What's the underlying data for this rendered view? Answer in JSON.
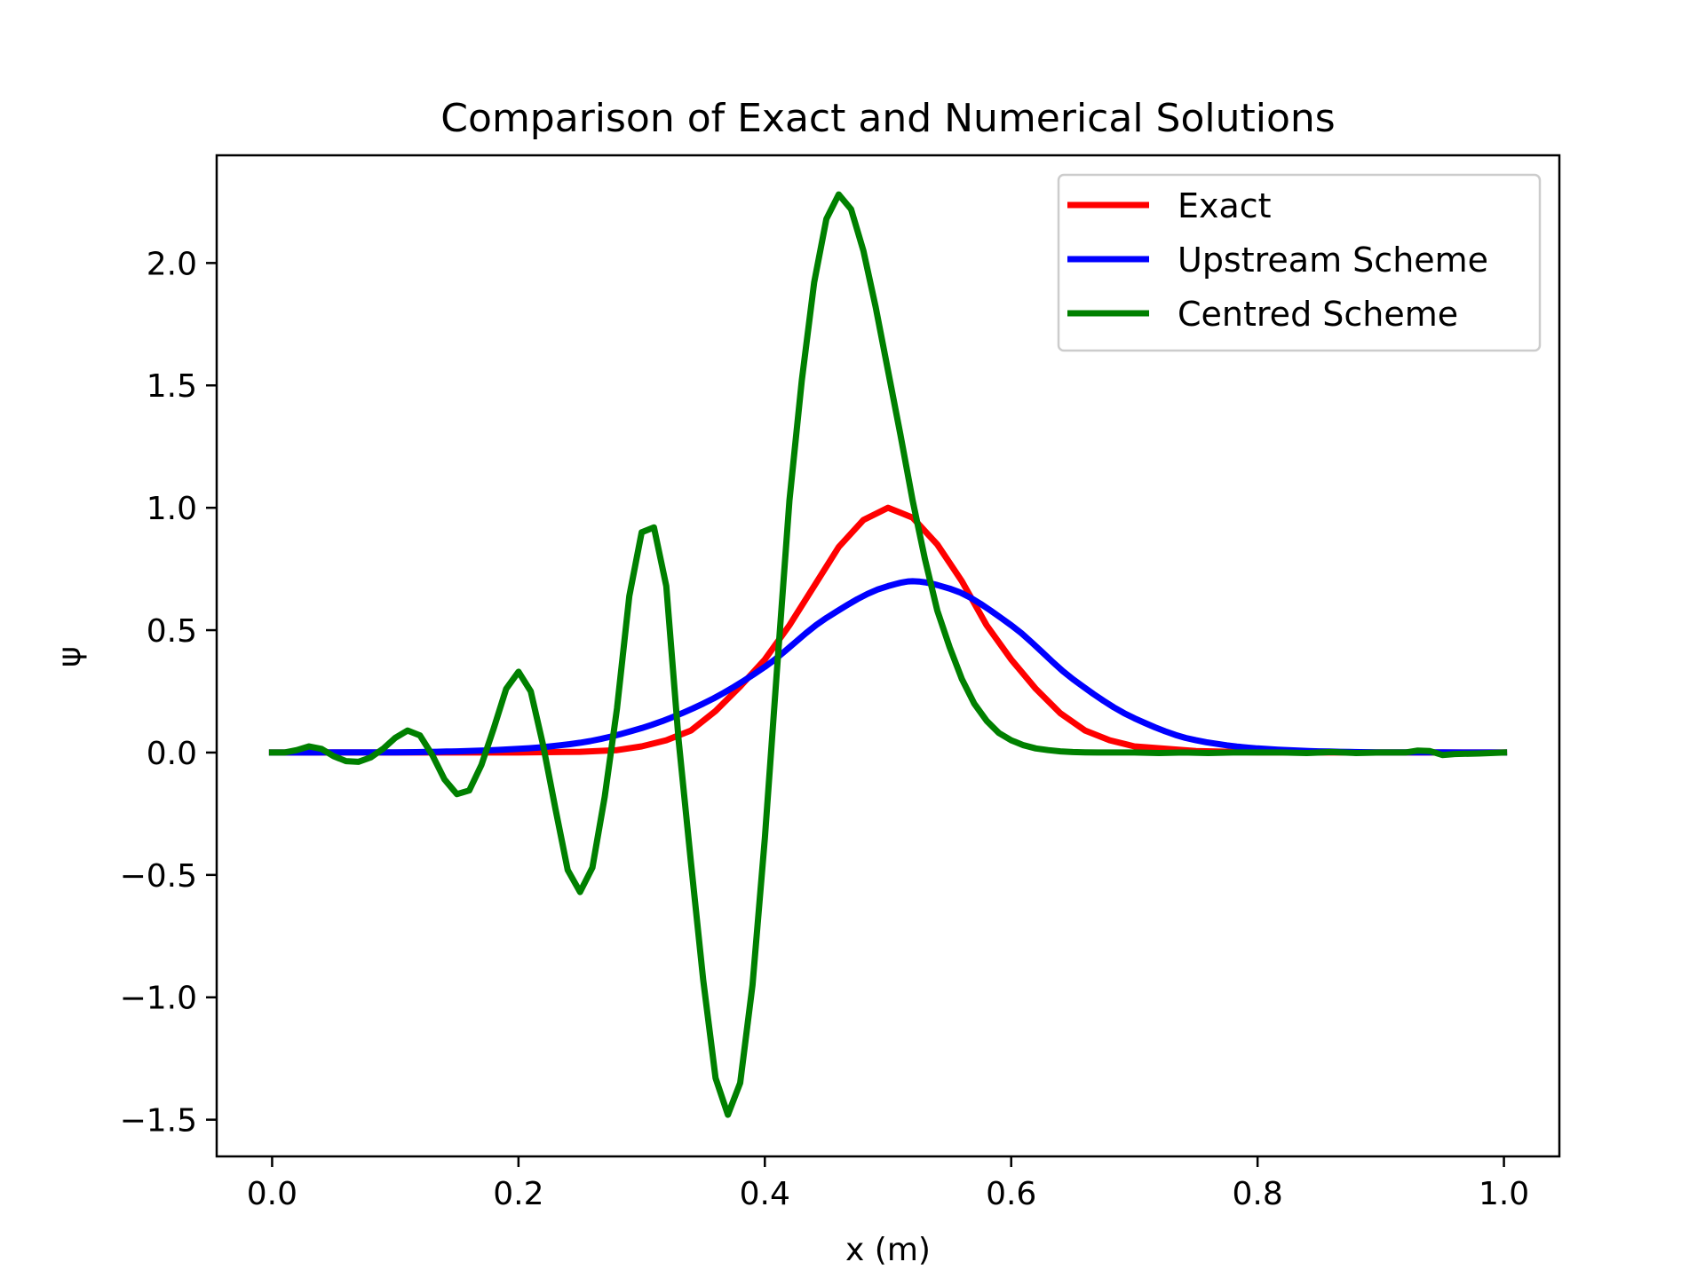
{
  "chart_data": {
    "type": "line",
    "title": "Comparison of Exact and Numerical Solutions",
    "xlabel": "x (m)",
    "ylabel": "ψ",
    "xlim": [
      -0.045,
      1.045
    ],
    "ylim": [
      -1.65,
      2.44
    ],
    "xticks": [
      0.0,
      0.2,
      0.4,
      0.6,
      0.8,
      1.0
    ],
    "xtick_labels": [
      "0.0",
      "0.2",
      "0.4",
      "0.6",
      "0.8",
      "1.0"
    ],
    "yticks": [
      -1.5,
      -1.0,
      -0.5,
      0.0,
      0.5,
      1.0,
      1.5,
      2.0
    ],
    "ytick_labels": [
      "−1.5",
      "−1.0",
      "−0.5",
      "0.0",
      "0.5",
      "1.0",
      "1.5",
      "2.0"
    ],
    "grid": false,
    "legend_position": "top-right",
    "series": [
      {
        "name": "Exact",
        "color": "#ff0000",
        "x": [
          0.0,
          0.1,
          0.2,
          0.25,
          0.28,
          0.3,
          0.32,
          0.34,
          0.36,
          0.38,
          0.4,
          0.42,
          0.44,
          0.46,
          0.48,
          0.5,
          0.52,
          0.54,
          0.56,
          0.58,
          0.6,
          0.62,
          0.64,
          0.66,
          0.68,
          0.7,
          0.75,
          0.8,
          0.9,
          1.0
        ],
        "y": [
          0.0,
          0.0,
          0.0,
          0.003,
          0.01,
          0.025,
          0.05,
          0.09,
          0.17,
          0.27,
          0.38,
          0.52,
          0.68,
          0.84,
          0.95,
          1.0,
          0.96,
          0.85,
          0.7,
          0.52,
          0.38,
          0.26,
          0.16,
          0.09,
          0.05,
          0.025,
          0.006,
          0.001,
          0.0,
          0.0
        ]
      },
      {
        "name": "Upstream Scheme",
        "color": "#0000ff",
        "x": [
          0.0,
          0.1,
          0.15,
          0.2,
          0.25,
          0.3,
          0.35,
          0.4,
          0.45,
          0.5,
          0.52,
          0.55,
          0.6,
          0.65,
          0.7,
          0.75,
          0.8,
          0.85,
          0.9,
          1.0
        ],
        "y": [
          0.0,
          0.001,
          0.005,
          0.015,
          0.04,
          0.1,
          0.2,
          0.35,
          0.55,
          0.68,
          0.7,
          0.67,
          0.52,
          0.3,
          0.14,
          0.05,
          0.017,
          0.005,
          0.001,
          0.0
        ],
        "smooth": true
      },
      {
        "name": "Centred Scheme",
        "color": "#008000",
        "x": [
          0.0,
          0.01,
          0.02,
          0.03,
          0.04,
          0.05,
          0.06,
          0.07,
          0.08,
          0.09,
          0.1,
          0.11,
          0.12,
          0.13,
          0.14,
          0.15,
          0.16,
          0.17,
          0.18,
          0.19,
          0.2,
          0.21,
          0.22,
          0.23,
          0.24,
          0.25,
          0.26,
          0.27,
          0.28,
          0.29,
          0.3,
          0.31,
          0.32,
          0.33,
          0.34,
          0.35,
          0.36,
          0.37,
          0.38,
          0.39,
          0.4,
          0.41,
          0.42,
          0.43,
          0.44,
          0.45,
          0.46,
          0.47,
          0.48,
          0.49,
          0.5,
          0.51,
          0.52,
          0.53,
          0.54,
          0.55,
          0.56,
          0.57,
          0.58,
          0.59,
          0.6,
          0.61,
          0.62,
          0.63,
          0.64,
          0.65,
          0.66,
          0.67,
          0.68,
          0.69,
          0.7,
          0.72,
          0.74,
          0.76,
          0.78,
          0.8,
          0.82,
          0.84,
          0.86,
          0.88,
          0.9,
          0.92,
          0.93,
          0.94,
          0.95,
          0.96,
          0.98,
          1.0
        ],
        "y": [
          0.0,
          0.0,
          0.01,
          0.025,
          0.015,
          -0.015,
          -0.035,
          -0.038,
          -0.02,
          0.015,
          0.06,
          0.09,
          0.07,
          -0.01,
          -0.11,
          -0.17,
          -0.155,
          -0.05,
          0.1,
          0.26,
          0.33,
          0.25,
          0.03,
          -0.23,
          -0.48,
          -0.57,
          -0.47,
          -0.18,
          0.18,
          0.64,
          0.9,
          0.92,
          0.68,
          0.05,
          -0.45,
          -0.93,
          -1.33,
          -1.48,
          -1.35,
          -0.95,
          -0.35,
          0.35,
          1.03,
          1.52,
          1.92,
          2.18,
          2.28,
          2.22,
          2.05,
          1.82,
          1.56,
          1.3,
          1.03,
          0.79,
          0.58,
          0.43,
          0.3,
          0.2,
          0.13,
          0.08,
          0.05,
          0.03,
          0.017,
          0.01,
          0.005,
          0.002,
          0.001,
          0.0,
          0.0,
          0.0,
          0.0,
          -0.002,
          0.0,
          -0.002,
          0.0,
          0.0,
          0.0,
          -0.002,
          0.002,
          -0.002,
          0.0,
          0.0,
          0.008,
          0.006,
          -0.01,
          -0.006,
          -0.004,
          0.0
        ]
      }
    ]
  }
}
